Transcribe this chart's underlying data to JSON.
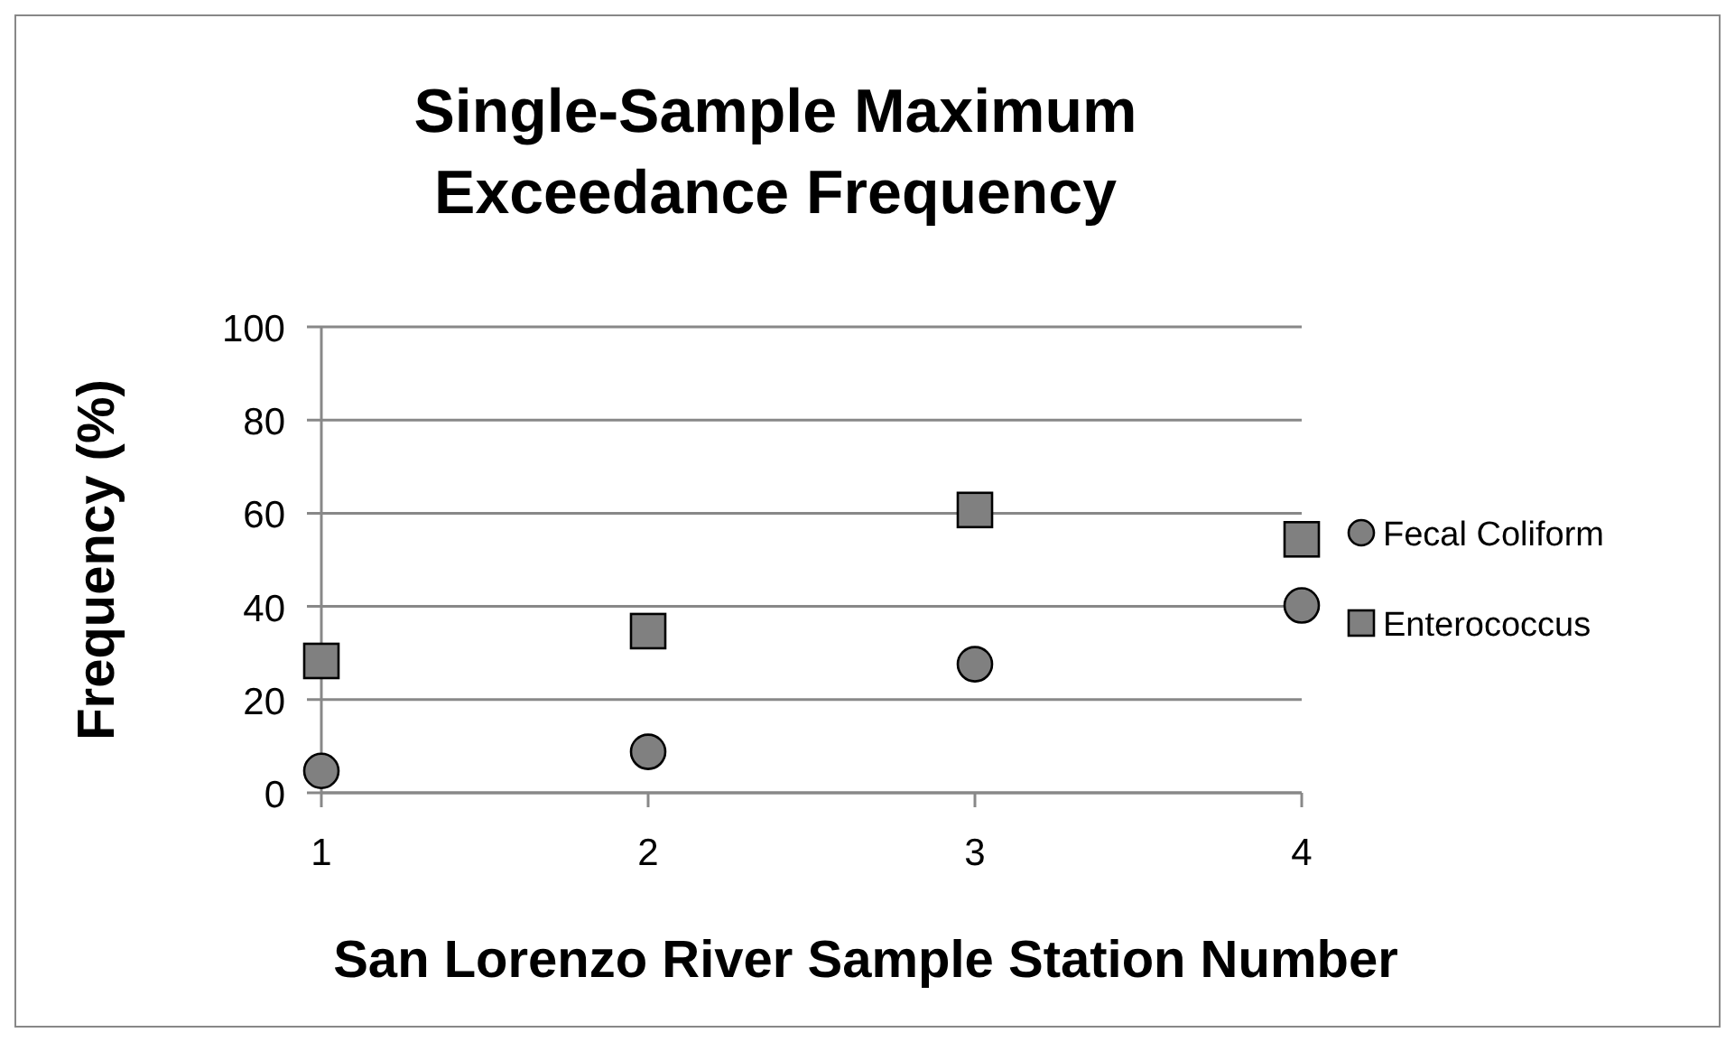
{
  "chart_data": {
    "type": "scatter",
    "title": "Single-Sample Maximum Exceedance Frequency",
    "xlabel": "San Lorenzo River Sample Station Number",
    "ylabel": "Frequency (%)",
    "x": [
      1,
      2,
      3,
      4
    ],
    "series": [
      {
        "name": "Fecal Coliform",
        "color": "#808080",
        "marker": "circle",
        "values": [
          4.7,
          8.8,
          27.6,
          40.2
        ]
      },
      {
        "name": "Enterococcus",
        "color": "#808080",
        "marker": "square",
        "values": [
          28.3,
          34.7,
          60.7,
          54.4
        ]
      }
    ],
    "xlim": [
      1,
      4
    ],
    "xticks": [
      1,
      2,
      3,
      4
    ],
    "ylim": [
      0,
      100
    ],
    "yticks": [
      0,
      20,
      40,
      60,
      80,
      100
    ],
    "grid": "y",
    "legend": "right"
  }
}
